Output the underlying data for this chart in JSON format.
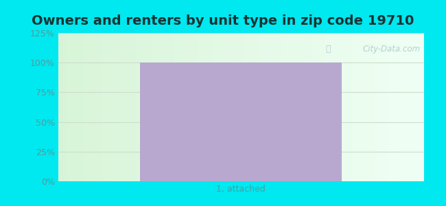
{
  "title": "Owners and renters by unit type in zip code 19710",
  "categories": [
    "1, attached"
  ],
  "values": [
    100
  ],
  "bar_color": "#b8a8d0",
  "bar_width": 0.55,
  "ylim": [
    0,
    125
  ],
  "yticks": [
    0,
    25,
    50,
    75,
    100,
    125
  ],
  "ytick_labels": [
    "0%",
    "25%",
    "50%",
    "75%",
    "100%",
    "125%"
  ],
  "bg_outer": "#00e8f0",
  "title_fontsize": 14,
  "tick_fontsize": 9,
  "xlabel_fontsize": 9,
  "watermark": "City-Data.com",
  "grid_color": "#ccddcc",
  "tick_color": "#559999",
  "title_color": "#1a3333"
}
